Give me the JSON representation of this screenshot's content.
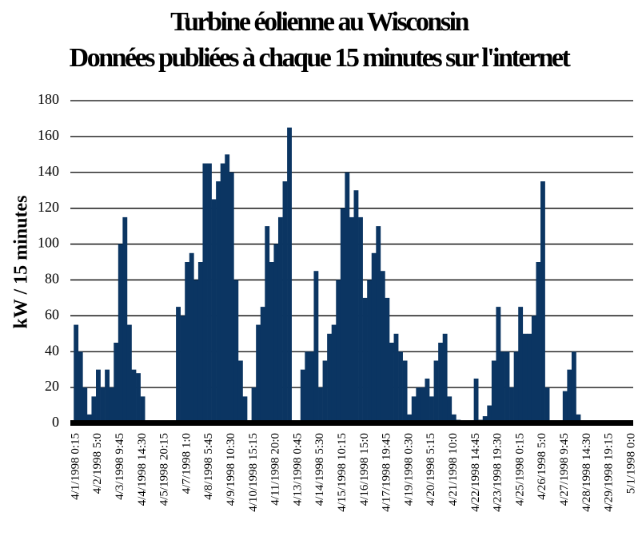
{
  "chart_data": {
    "type": "bar",
    "title": "Turbine éolienne au Wisconsin",
    "subtitle": "Données publiées à chaque 15 minutes sur l'internet",
    "y_label": "kW / 15 minutes",
    "color": "#0b3562",
    "grid": true,
    "ylim": [
      0,
      180
    ],
    "yticks": [
      0,
      20,
      40,
      60,
      80,
      100,
      120,
      140,
      160,
      180
    ],
    "categories": [
      "4/1/1998 0:15",
      null,
      null,
      null,
      null,
      "4/2/1998 5:0",
      null,
      null,
      null,
      null,
      "4/3/1998 9:45",
      null,
      null,
      null,
      null,
      "4/4/1998 14:30",
      null,
      null,
      null,
      null,
      "4/5/1998 20:15",
      null,
      null,
      null,
      null,
      "4/7/1998 1:0",
      null,
      null,
      null,
      null,
      "4/8/1998 5:45",
      null,
      null,
      null,
      null,
      "4/9/1998 10:30",
      null,
      null,
      null,
      null,
      "4/10/1998 15:15",
      null,
      null,
      null,
      null,
      "4/11/1998 20:0",
      null,
      null,
      null,
      null,
      "4/13/1998 0:45",
      null,
      null,
      null,
      null,
      "4/14/1998 5:30",
      null,
      null,
      null,
      null,
      "4/15/1998 10:15",
      null,
      null,
      null,
      null,
      "4/16/1998 15:0",
      null,
      null,
      null,
      null,
      "4/17/1998 19:45",
      null,
      null,
      null,
      null,
      "4/19/1998 0:30",
      null,
      null,
      null,
      null,
      "4/20/1998 5:15",
      null,
      null,
      null,
      null,
      "4/21/1998 10:0",
      null,
      null,
      null,
      null,
      "4/22/1998 14:45",
      null,
      null,
      null,
      null,
      "4/23/1998 19:30",
      null,
      null,
      null,
      null,
      "4/25/1998 0:15",
      null,
      null,
      null,
      null,
      "4/26/1998 5:0",
      null,
      null,
      null,
      null,
      "4/27/1998 9:45",
      null,
      null,
      null,
      null,
      "4/28/1998 14:30",
      null,
      null,
      null,
      null,
      "4/29/1998 19:15",
      null,
      null,
      null,
      null,
      "5/1/1998 0:0"
    ],
    "values": [
      55,
      40,
      20,
      5,
      15,
      30,
      20,
      30,
      20,
      45,
      100,
      115,
      55,
      30,
      28,
      15,
      0,
      0,
      0,
      0,
      0,
      0,
      0,
      65,
      60,
      90,
      95,
      80,
      90,
      145,
      145,
      125,
      135,
      145,
      150,
      140,
      80,
      35,
      15,
      1,
      20,
      55,
      65,
      110,
      90,
      100,
      115,
      135,
      165,
      0,
      0,
      30,
      40,
      40,
      85,
      20,
      35,
      50,
      55,
      80,
      120,
      140,
      115,
      130,
      115,
      70,
      80,
      95,
      110,
      85,
      70,
      45,
      50,
      40,
      35,
      5,
      15,
      20,
      20,
      25,
      15,
      35,
      45,
      50,
      15,
      5,
      2,
      0,
      0,
      0,
      25,
      2,
      4,
      10,
      35,
      65,
      40,
      40,
      20,
      40,
      65,
      50,
      50,
      60,
      90,
      135,
      20,
      0,
      0,
      0,
      18,
      30,
      40,
      5,
      0,
      0,
      0,
      0,
      0,
      0,
      0,
      0,
      0,
      0,
      1,
      0
    ]
  }
}
